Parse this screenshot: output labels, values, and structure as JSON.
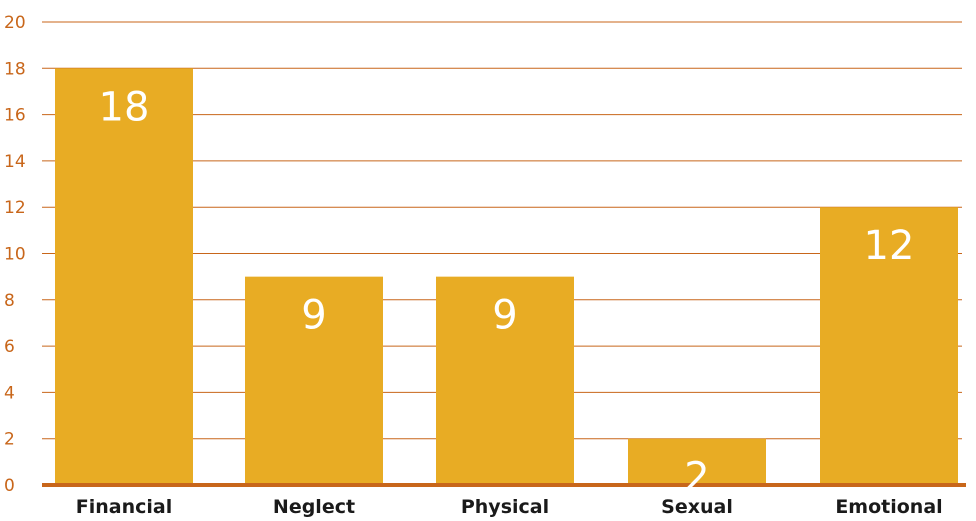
{
  "chart_data": {
    "type": "bar",
    "categories": [
      "Financial",
      "Neglect",
      "Physical",
      "Sexual",
      "Emotional"
    ],
    "values": [
      18,
      9,
      9,
      2,
      12
    ],
    "data_labels": [
      "18",
      "9",
      "9",
      "2",
      "12"
    ],
    "y_ticks": [
      "0",
      "2",
      "4",
      "6",
      "8",
      "10",
      "12",
      "14",
      "16",
      "18",
      "20"
    ],
    "ylim": [
      0,
      20
    ],
    "grid": true,
    "legend": "none",
    "title": "",
    "xlabel": "",
    "ylabel": ""
  },
  "colors": {
    "bar": "#e8ac24",
    "grid": "#c8661a",
    "axis": "#c8661a",
    "tick_text": "#c8661a",
    "category_text": "#1a1a1a",
    "data_label_text": "#ffffff"
  }
}
